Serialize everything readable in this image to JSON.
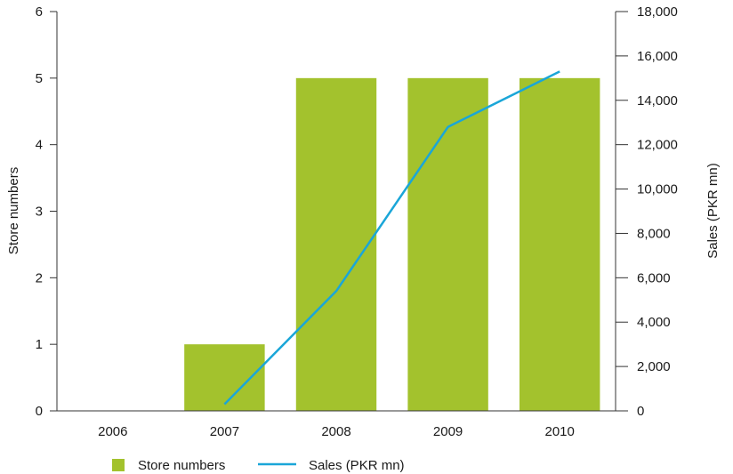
{
  "chart_data": {
    "type": "bar",
    "categories": [
      "2006",
      "2007",
      "2008",
      "2009",
      "2010"
    ],
    "series": [
      {
        "name": "Store numbers",
        "kind": "bar",
        "axis": "left",
        "values": [
          0,
          1,
          5,
          5,
          5
        ]
      },
      {
        "name": "Sales (PKR mn)",
        "kind": "line",
        "axis": "right",
        "values": [
          null,
          300,
          5400,
          12800,
          15300
        ]
      }
    ],
    "title": "",
    "xlabel": "",
    "ylabel": "Store numbers",
    "y2label": "Sales (PKR mn)",
    "ylim": [
      0,
      6
    ],
    "y2lim": [
      0,
      18000
    ],
    "yticks": [
      "0",
      "1",
      "2",
      "3",
      "4",
      "5",
      "6"
    ],
    "y2ticks": [
      "0",
      "2,000",
      "4,000",
      "6,000",
      "8,000",
      "10,000",
      "12,000",
      "14,000",
      "16,000",
      "18,000"
    ],
    "grid": false,
    "legend_position": "bottom",
    "colors": {
      "bar": "#a3c22d",
      "line": "#1aa6d8",
      "axis": "#333333"
    }
  }
}
